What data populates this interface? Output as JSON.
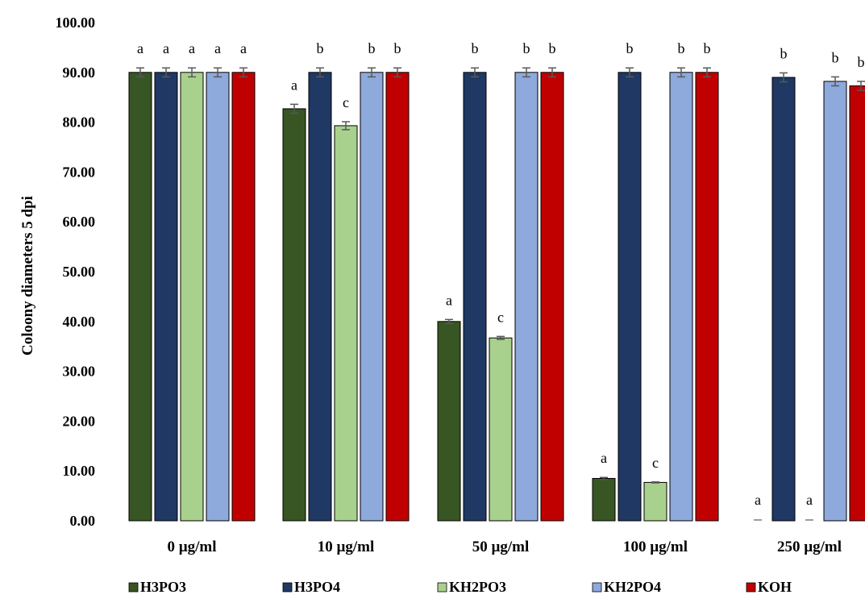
{
  "chart_data": {
    "type": "bar",
    "title": "",
    "xlabel": "",
    "ylabel": "Coloony diameters 5 dpi",
    "ylim": [
      0,
      100
    ],
    "yticks": [
      "0.00",
      "10.00",
      "20.00",
      "30.00",
      "40.00",
      "50.00",
      "60.00",
      "70.00",
      "80.00",
      "90.00",
      "100.00"
    ],
    "grid": false,
    "legend_position": "bottom",
    "categories": [
      "0 µg/ml",
      "10 µg/ml",
      "50 µg/ml",
      "100  µg/ml",
      "250 µg/ml"
    ],
    "series": [
      {
        "name": "H3PO3",
        "color": "#375623",
        "values": [
          90,
          82.7,
          40,
          8.5,
          0
        ],
        "errors": [
          0.9,
          0.9,
          0.4,
          0.2,
          0
        ],
        "letters": [
          "a",
          "a",
          "a",
          "a",
          "a"
        ]
      },
      {
        "name": "H3PO4",
        "color": "#1F3864",
        "values": [
          90,
          90,
          90,
          90,
          89
        ],
        "errors": [
          0.9,
          0.9,
          0.9,
          0.9,
          0.9
        ],
        "letters": [
          "a",
          "b",
          "b",
          "b",
          "b"
        ]
      },
      {
        "name": "KH2PO3",
        "color": "#A9D18E",
        "values": [
          90,
          79.3,
          36.7,
          7.7,
          0
        ],
        "errors": [
          0.9,
          0.8,
          0.3,
          0.1,
          0
        ],
        "letters": [
          "a",
          "c",
          "c",
          "c",
          "a"
        ]
      },
      {
        "name": "KH2PO4",
        "color": "#8EA9DB",
        "values": [
          90,
          90,
          90,
          90,
          88.2
        ],
        "errors": [
          0.9,
          0.9,
          0.9,
          0.9,
          0.9
        ],
        "letters": [
          "a",
          "b",
          "b",
          "b",
          "b"
        ]
      },
      {
        "name": "KOH",
        "color": "#C00000",
        "values": [
          90,
          90,
          90,
          90,
          87.3
        ],
        "errors": [
          0.9,
          0.9,
          0.9,
          0.9,
          0.9
        ],
        "letters": [
          "a",
          "b",
          "b",
          "b",
          "b"
        ]
      }
    ]
  }
}
